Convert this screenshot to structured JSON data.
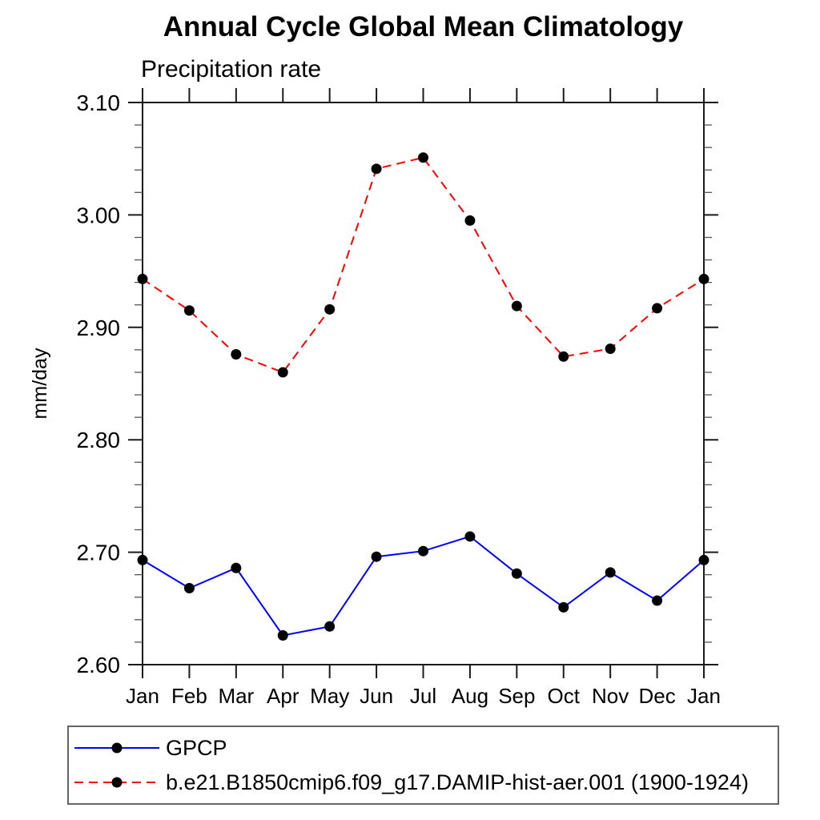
{
  "chart_data": {
    "type": "line",
    "title": "Annual Cycle Global Mean Climatology",
    "subtitle": "Precipitation rate",
    "ylabel": "mm/day",
    "categories": [
      "Jan",
      "Feb",
      "Mar",
      "Apr",
      "May",
      "Jun",
      "Jul",
      "Aug",
      "Sep",
      "Oct",
      "Nov",
      "Dec",
      "Jan"
    ],
    "series": [
      {
        "name": "GPCP",
        "color": "#0000ff",
        "line_style": "solid",
        "marker": "filled-circle",
        "marker_color": "#000000",
        "values": [
          2.693,
          2.668,
          2.686,
          2.626,
          2.634,
          2.696,
          2.701,
          2.714,
          2.681,
          2.651,
          2.682,
          2.657,
          2.693
        ]
      },
      {
        "name": "b.e21.B1850cmip6.f09_g17.DAMIP-hist-aer.001 (1900-1924)",
        "color": "#ff0000",
        "line_style": "dashed",
        "marker": "filled-circle",
        "marker_color": "#000000",
        "values": [
          2.943,
          2.915,
          2.876,
          2.86,
          2.916,
          3.041,
          3.051,
          2.995,
          2.919,
          2.874,
          2.881,
          2.917,
          2.943
        ]
      }
    ],
    "ylim": [
      2.6,
      3.1
    ],
    "y_ticks": {
      "major_step": 0.1,
      "minor_step": 0.02,
      "labels": [
        "2.60",
        "2.70",
        "2.80",
        "2.90",
        "3.00",
        "3.10"
      ]
    },
    "grid": false,
    "legend_position": "bottom-left",
    "axis_color": "#1a1a1a",
    "minor_tick_color": "#555555"
  }
}
